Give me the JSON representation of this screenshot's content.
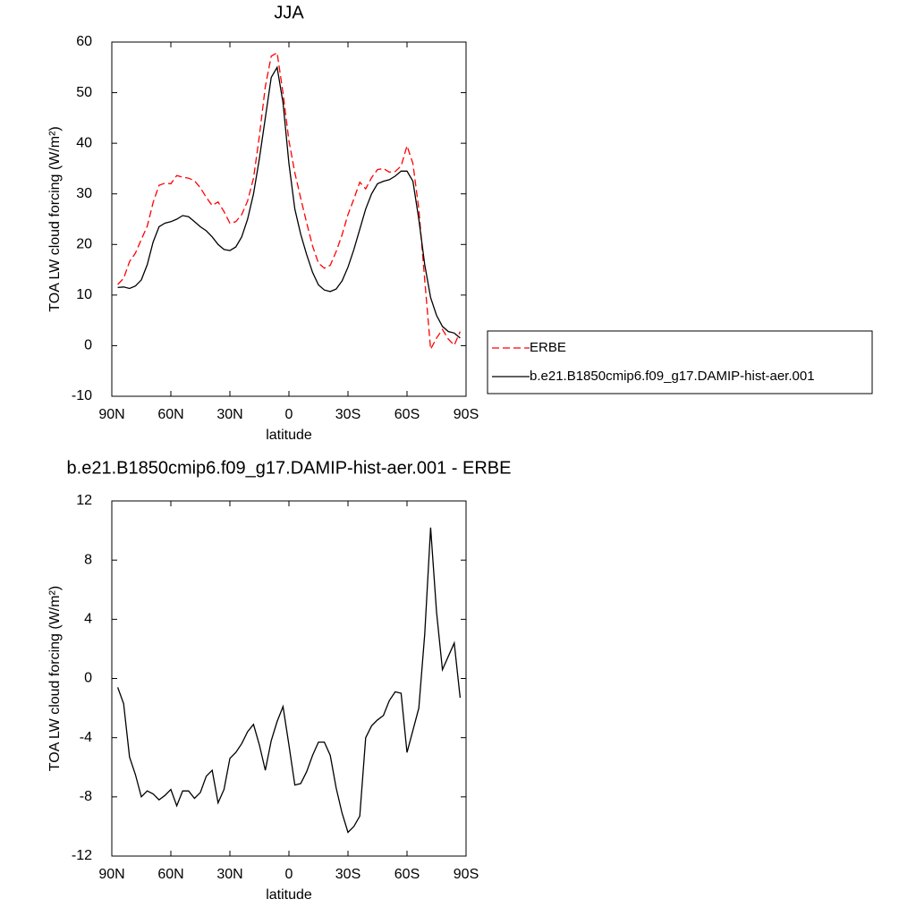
{
  "chart_data": [
    {
      "type": "line",
      "title": "JJA",
      "x_label": "latitude",
      "y_label": "TOA LW cloud forcing (W/m²)",
      "x": [
        87,
        84,
        81,
        78,
        75,
        72,
        69,
        66,
        63,
        60,
        57,
        54,
        51,
        48,
        45,
        42,
        39,
        36,
        33,
        30,
        27,
        24,
        21,
        18,
        15,
        12,
        9,
        6,
        3,
        0,
        -3,
        -6,
        -9,
        -12,
        -15,
        -18,
        -21,
        -24,
        -27,
        -30,
        -33,
        -36,
        -39,
        -42,
        -45,
        -48,
        -51,
        -54,
        -57,
        -60,
        -63,
        -66,
        -69,
        -72,
        -75,
        -78,
        -81,
        -84,
        -87
      ],
      "series": [
        {
          "name": "ERBE",
          "color": "#ff0000",
          "line_style": "dashed",
          "values": [
            12.1,
            13.3,
            16.6,
            18.3,
            21,
            23.6,
            28.3,
            31.7,
            32.1,
            32,
            33.6,
            33.3,
            33.1,
            32.6,
            31.2,
            29.3,
            27.7,
            28.4,
            26.5,
            24.2,
            24.5,
            25.9,
            28.6,
            33.1,
            41.5,
            51.2,
            57.2,
            57.9,
            49.9,
            40.5,
            34.2,
            29.1,
            24.3,
            19.7,
            16.3,
            15.3,
            15.9,
            18.6,
            21.9,
            25.9,
            29,
            32.3,
            31,
            33.2,
            34.8,
            35,
            34.3,
            34.4,
            35.5,
            39.5,
            36,
            27,
            13,
            -0.7,
            1.5,
            3.2,
            1.3,
            0.1,
            2.8
          ]
        },
        {
          "name": "b.e21.B1850cmip6.f09_g17.DAMIP-hist-aer.001",
          "color": "#000000",
          "line_style": "solid",
          "values": [
            11.5,
            11.6,
            11.3,
            11.8,
            13,
            16,
            20.5,
            23.5,
            24.2,
            24.5,
            25,
            25.7,
            25.5,
            24.5,
            23.5,
            22.7,
            21.5,
            20,
            19,
            18.8,
            19.5,
            21.5,
            25,
            30,
            37,
            45,
            53,
            55,
            48,
            36,
            27,
            22,
            18,
            14.5,
            12,
            11,
            10.7,
            11.2,
            12.8,
            15.5,
            19,
            23,
            27,
            30,
            32,
            32.5,
            32.8,
            33.5,
            34.5,
            34.5,
            32.5,
            25,
            16,
            9.5,
            6,
            3.8,
            2.8,
            2.5,
            1.5
          ]
        }
      ],
      "xlim": [
        90,
        -90
      ],
      "xticks": [
        {
          "value": 90,
          "label": "90N"
        },
        {
          "value": 60,
          "label": "60N"
        },
        {
          "value": 30,
          "label": "30N"
        },
        0,
        {
          "value": -30,
          "label": "30S"
        },
        {
          "value": -60,
          "label": "60S"
        },
        {
          "value": -90,
          "label": "90S"
        }
      ],
      "ylim": [
        -10,
        60
      ],
      "yticks": [
        -10,
        0,
        10,
        20,
        30,
        40,
        50,
        60
      ],
      "legend": "right"
    },
    {
      "type": "line",
      "title": "b.e21.B1850cmip6.f09_g17.DAMIP-hist-aer.001 - ERBE",
      "x_label": "latitude",
      "y_label": "TOA LW cloud forcing (W/m²)",
      "x": [
        87,
        84,
        81,
        78,
        75,
        72,
        69,
        66,
        63,
        60,
        57,
        54,
        51,
        48,
        45,
        42,
        39,
        36,
        33,
        30,
        27,
        24,
        21,
        18,
        15,
        12,
        9,
        6,
        3,
        0,
        -3,
        -6,
        -9,
        -12,
        -15,
        -18,
        -21,
        -24,
        -27,
        -30,
        -33,
        -36,
        -39,
        -42,
        -45,
        -48,
        -51,
        -54,
        -57,
        -60,
        -63,
        -66,
        -69,
        -72,
        -75,
        -78,
        -81,
        -84,
        -87
      ],
      "values": [
        -0.6,
        -1.7,
        -5.3,
        -6.5,
        -8,
        -7.6,
        -7.8,
        -8.2,
        -7.9,
        -7.5,
        -8.6,
        -7.6,
        -7.6,
        -8.1,
        -7.7,
        -6.6,
        -6.2,
        -8.4,
        -7.5,
        -5.4,
        -5,
        -4.4,
        -3.6,
        -3.1,
        -4.5,
        -6.2,
        -4.2,
        -2.9,
        -1.9,
        -4.5,
        -7.2,
        -7.1,
        -6.3,
        -5.2,
        -4.3,
        -4.3,
        -5.2,
        -7.4,
        -9.1,
        -10.4,
        -10,
        -9.3,
        -4,
        -3.2,
        -2.8,
        -2.5,
        -1.5,
        -0.9,
        -1,
        -5,
        -3.5,
        -2,
        3,
        10.2,
        4.5,
        0.6,
        1.5,
        2.4,
        -1.3
      ],
      "color": "#000000",
      "xlim": [
        90,
        -90
      ],
      "xticks": [
        {
          "value": 90,
          "label": "90N"
        },
        {
          "value": 60,
          "label": "60N"
        },
        {
          "value": 30,
          "label": "30N"
        },
        0,
        {
          "value": -30,
          "label": "30S"
        },
        {
          "value": -60,
          "label": "60S"
        },
        {
          "value": -90,
          "label": "90S"
        }
      ],
      "ylim": [
        -12,
        12
      ],
      "yticks": [
        -12,
        -8,
        -4,
        0,
        4,
        8,
        12
      ]
    }
  ]
}
